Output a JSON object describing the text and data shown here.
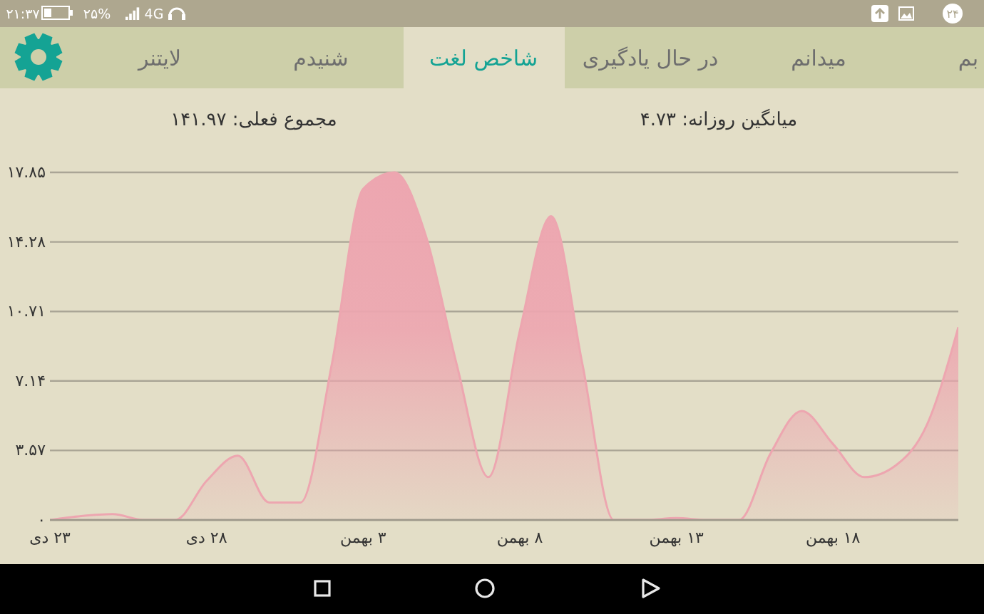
{
  "chart_data": {
    "type": "area",
    "categories": [
      "۲۳ دی",
      null,
      null,
      null,
      null,
      "۲۸ دی",
      null,
      null,
      null,
      null,
      "۳ بهمن",
      null,
      null,
      null,
      null,
      "۸ بهمن",
      null,
      null,
      null,
      null,
      "۱۳ بهمن",
      null,
      null,
      null,
      null,
      "۱۸ بهمن",
      null,
      null,
      null,
      null
    ],
    "series": [
      {
        "color": "#eda6b0",
        "values": [
          0,
          0.2,
          0.3,
          0,
          0,
          2.0,
          3.3,
          0.9,
          0.9,
          8.0,
          17.0,
          17.85,
          14.6,
          7.9,
          2.2,
          9.7,
          15.6,
          8.0,
          0,
          0,
          0.1,
          0,
          0,
          3.4,
          5.6,
          3.9,
          2.2,
          2.8,
          4.9,
          9.9
        ]
      }
    ],
    "ylim": [
      0,
      17.85
    ],
    "yticks": [
      {
        "value": 0,
        "label": "۰"
      },
      {
        "value": 3.57,
        "label": "۳.۵۷"
      },
      {
        "value": 7.14,
        "label": "۷.۱۴"
      },
      {
        "value": 10.71,
        "label": "۱۰.۷۱"
      },
      {
        "value": 14.28,
        "label": "۱۴.۲۸"
      },
      {
        "value": 17.85,
        "label": "۱۷.۸۵"
      }
    ],
    "grid": "y",
    "annotations": [
      "میانگین روزانه: ۴.۷۳",
      "مجموع فعلی: ۱۴۱.۹۷",
      "بم",
      "میدانم",
      "در حال یادگیری",
      "شاخص لغت",
      "شنیدم",
      "لایتنر",
      "۲۱:۳۷",
      "۲۵%",
      "4G",
      "۲۴"
    ]
  }
}
